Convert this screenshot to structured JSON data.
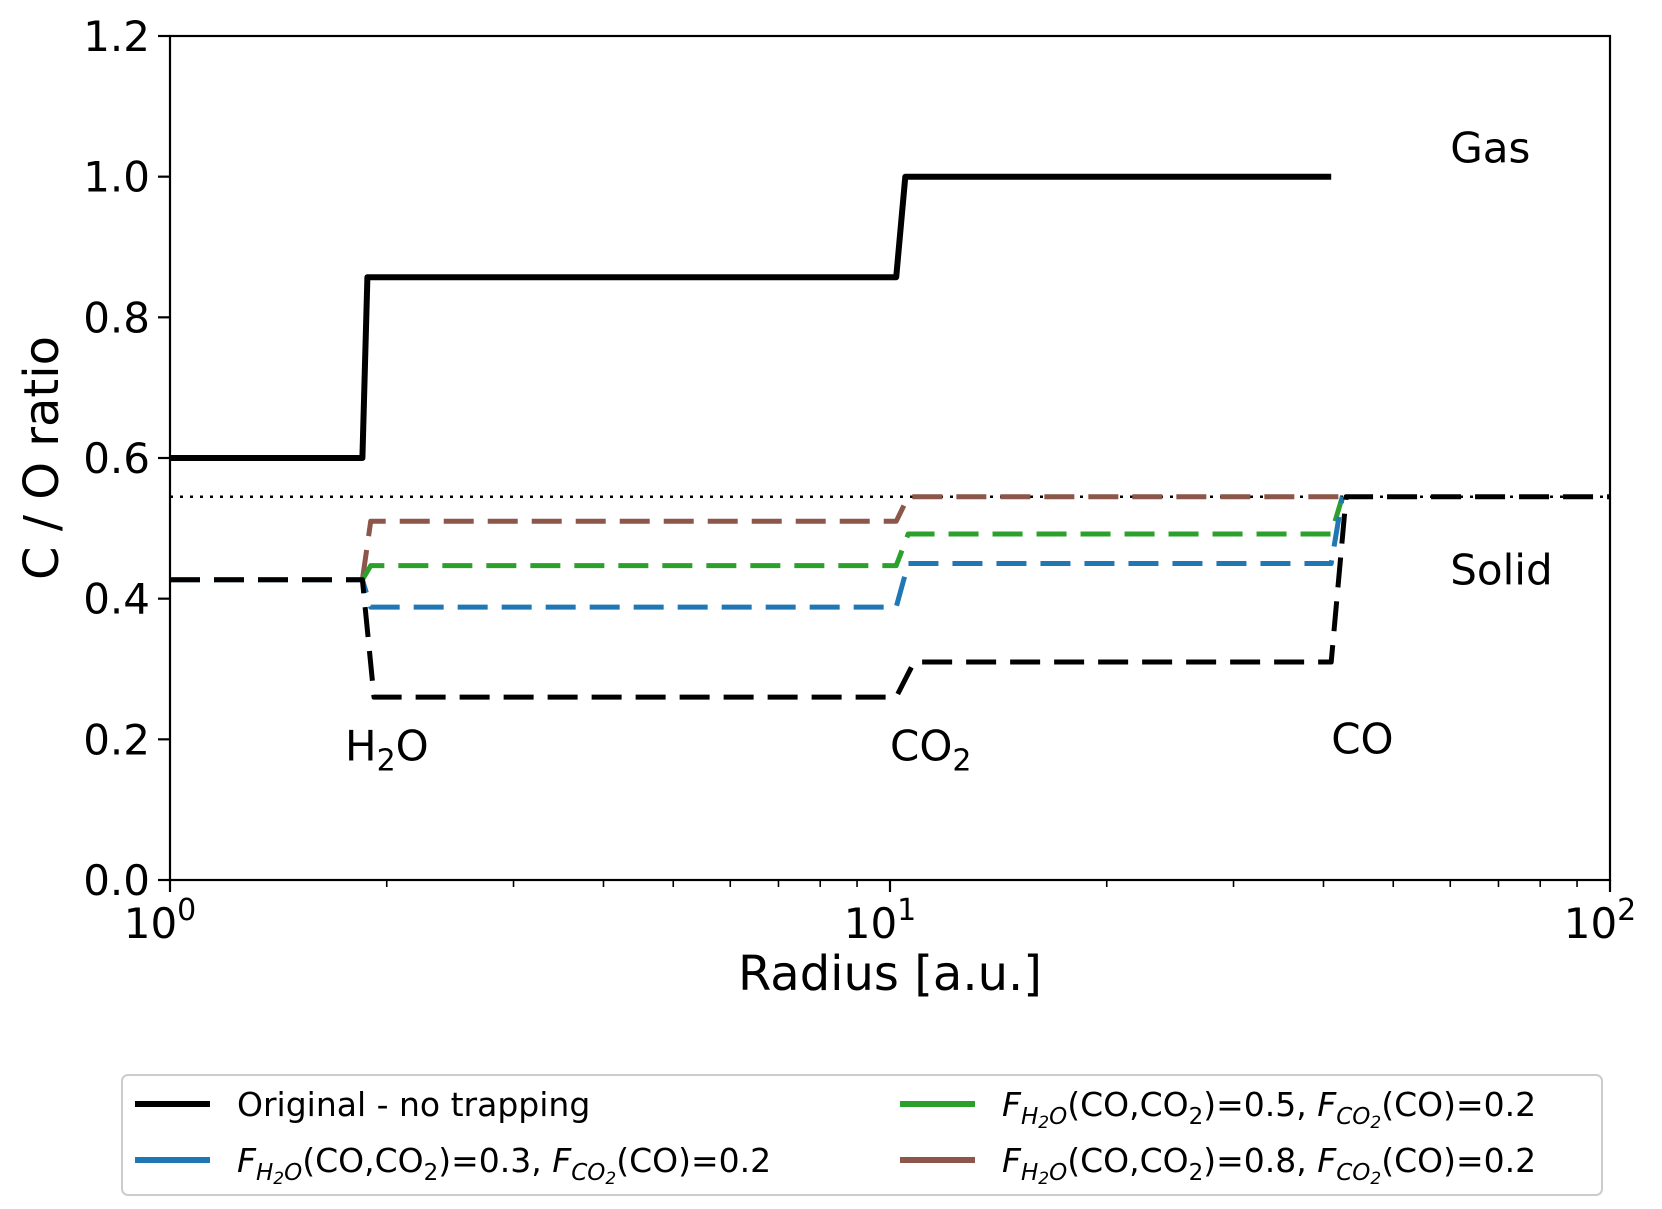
{
  "chart_data": {
    "type": "line",
    "title": "",
    "xlabel": "Radius [a.u.]",
    "ylabel": "C / O ratio",
    "x_scale": "log",
    "xlim": [
      1,
      100
    ],
    "ylim": [
      0,
      1.2
    ],
    "x_ticks": [
      {
        "value": 1,
        "base": "10",
        "exp": "0"
      },
      {
        "value": 10,
        "base": "10",
        "exp": "1"
      },
      {
        "value": 100,
        "base": "10",
        "exp": "2"
      }
    ],
    "y_ticks": [
      {
        "value": 0.0,
        "label": "0.0"
      },
      {
        "value": 0.2,
        "label": "0.2"
      },
      {
        "value": 0.4,
        "label": "0.4"
      },
      {
        "value": 0.6,
        "label": "0.6"
      },
      {
        "value": 0.8,
        "label": "0.8"
      },
      {
        "value": 1.0,
        "label": "1.0"
      },
      {
        "value": 1.2,
        "label": "1.2"
      }
    ],
    "grid": false,
    "legend_position": "bottom, below plot, two columns",
    "annotations": [
      {
        "id": "gas",
        "text": "Gas",
        "x": 60,
        "y": 1.02
      },
      {
        "id": "solid",
        "text": "Solid",
        "x": 60,
        "y": 0.42
      },
      {
        "id": "h2o",
        "text": "H",
        "sub": "2",
        "suffix": "O",
        "x": 1.75,
        "y": 0.17
      },
      {
        "id": "co2",
        "text": "CO",
        "sub": "2",
        "suffix": "",
        "x": 10,
        "y": 0.17
      },
      {
        "id": "co",
        "text": "CO",
        "sub": "",
        "suffix": "",
        "x": 41,
        "y": 0.18
      }
    ],
    "series": [
      {
        "id": "gas-original",
        "name": "Original - no trapping",
        "color": "#000000",
        "style": "solid",
        "phase": "gas",
        "x": [
          1,
          1.85,
          1.88,
          10.2,
          10.5,
          41
        ],
        "y": [
          0.6,
          0.6,
          0.857,
          0.857,
          1.0,
          1.0
        ]
      },
      {
        "id": "solid-original",
        "name": "Original - no trapping",
        "color": "#000000",
        "style": "dashed",
        "phase": "solid",
        "x": [
          1,
          1.85,
          1.92,
          10.2,
          10.8,
          41,
          43,
          100
        ],
        "y": [
          0.427,
          0.427,
          0.26,
          0.26,
          0.31,
          0.31,
          0.545,
          0.545
        ]
      },
      {
        "id": "solid-f03",
        "name": "FH2O(CO,CO2)=0.3, FCO2(CO)=0.2",
        "color": "#1f77b4",
        "style": "dashed",
        "phase": "solid",
        "x": [
          1,
          1.85,
          1.9,
          10.2,
          10.6,
          41,
          42.5
        ],
        "y": [
          0.427,
          0.427,
          0.388,
          0.388,
          0.45,
          0.45,
          0.545
        ]
      },
      {
        "id": "solid-f05",
        "name": "FH2O(CO,CO2)=0.5, FCO2(CO)=0.2",
        "color": "#2ca02c",
        "style": "dashed",
        "phase": "solid",
        "x": [
          1.85,
          1.9,
          10.2,
          10.6,
          41,
          42.5
        ],
        "y": [
          0.427,
          0.447,
          0.447,
          0.492,
          0.492,
          0.545
        ]
      },
      {
        "id": "solid-f08",
        "name": "FH2O(CO,CO2)=0.8, FCO2(CO)=0.2",
        "color": "#8c564b",
        "style": "dashed",
        "phase": "solid",
        "x": [
          1.85,
          1.9,
          10.2,
          10.6,
          42.5
        ],
        "y": [
          0.427,
          0.51,
          0.51,
          0.545,
          0.545
        ]
      },
      {
        "id": "reference",
        "name": "",
        "color": "#000000",
        "style": "dotted",
        "phase": "reference",
        "x": [
          1,
          100
        ],
        "y": [
          0.545,
          0.545
        ]
      }
    ]
  },
  "legend": {
    "items": [
      {
        "id": "original",
        "color": "#000000",
        "plain": "Original - no trapping"
      },
      {
        "id": "f03",
        "color": "#1f77b4",
        "F": "F",
        "sub1": "H",
        "sub1b": "2",
        "sub1c": "O",
        "mid": "(CO,CO",
        "mid_sub": "2",
        "value": ")=0.3, ",
        "F2": "F",
        "sub2": "CO",
        "sub2b": "2",
        "end": "(CO)=0.2"
      },
      {
        "id": "f05",
        "color": "#2ca02c",
        "F": "F",
        "sub1": "H",
        "sub1b": "2",
        "sub1c": "O",
        "mid": "(CO,CO",
        "mid_sub": "2",
        "value": ")=0.5, ",
        "F2": "F",
        "sub2": "CO",
        "sub2b": "2",
        "end": "(CO)=0.2"
      },
      {
        "id": "f08",
        "color": "#8c564b",
        "F": "F",
        "sub1": "H",
        "sub1b": "2",
        "sub1c": "O",
        "mid": "(CO,CO",
        "mid_sub": "2",
        "value": ")=0.8, ",
        "F2": "F",
        "sub2": "CO",
        "sub2b": "2",
        "end": "(CO)=0.2"
      }
    ]
  }
}
